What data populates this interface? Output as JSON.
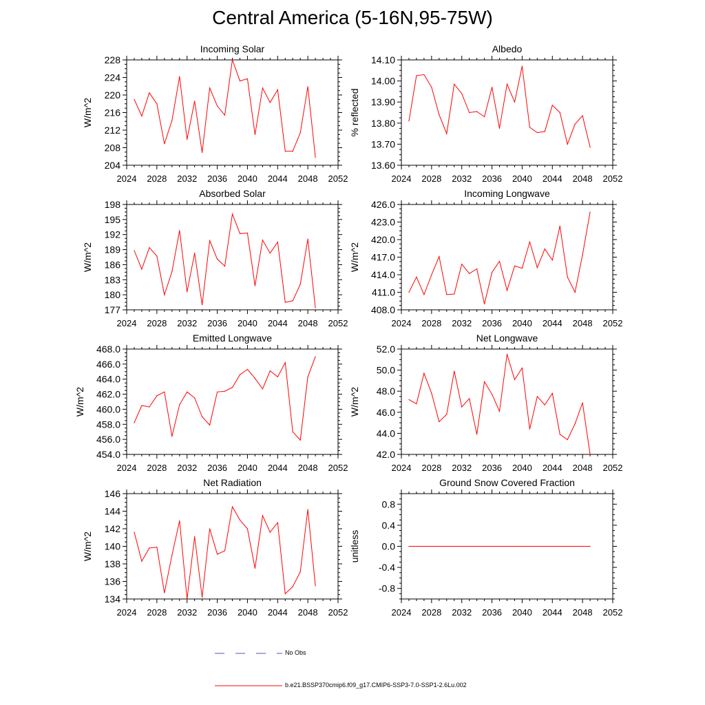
{
  "page": {
    "title": "Central America (5-16N,95-75W)"
  },
  "legend": {
    "items": [
      {
        "label": "No Obs",
        "style": "dashed",
        "color": "#4a52c8"
      },
      {
        "label": "b.e21.BSSP370cmip6.f09_g17.CMIP6-SSP3-7.0-SSP1-2.6Lu.002",
        "style": "solid",
        "color": "#ff0000"
      }
    ]
  },
  "chart_data": [
    {
      "type": "line",
      "title": "Incoming Solar",
      "ylabel": "W/m^2",
      "xlabel": "",
      "xlim": [
        2024,
        2052
      ],
      "ylim": [
        204,
        228
      ],
      "xticks": [
        2024,
        2028,
        2032,
        2036,
        2040,
        2044,
        2048,
        2052
      ],
      "yticks": [
        204,
        208,
        212,
        216,
        220,
        224,
        228
      ],
      "ytick_labels": [
        "204",
        "208",
        "212",
        "216",
        "220",
        "224",
        "228"
      ],
      "color": "#ff0000",
      "x": [
        2025,
        2026,
        2027,
        2028,
        2029,
        2030,
        2031,
        2032,
        2033,
        2034,
        2035,
        2036,
        2037,
        2038,
        2039,
        2040,
        2041,
        2042,
        2043,
        2044,
        2045,
        2046,
        2047,
        2048,
        2049
      ],
      "values": [
        219.0,
        215.2,
        220.5,
        218.0,
        208.9,
        214.2,
        224.2,
        209.9,
        218.6,
        206.9,
        221.6,
        217.5,
        215.4,
        228.0,
        223.2,
        223.7,
        211.0,
        221.6,
        218.3,
        221.2,
        207.2,
        207.2,
        211.4,
        221.9,
        205.8
      ]
    },
    {
      "type": "line",
      "title": "Albedo",
      "ylabel": "% reflected",
      "xlabel": "",
      "xlim": [
        2024,
        2052
      ],
      "ylim": [
        13.6,
        14.1
      ],
      "xticks": [
        2024,
        2028,
        2032,
        2036,
        2040,
        2044,
        2048,
        2052
      ],
      "yticks": [
        13.6,
        13.7,
        13.8,
        13.9,
        14.0,
        14.1
      ],
      "ytick_labels": [
        "13.60",
        "13.70",
        "13.80",
        "13.90",
        "14.00",
        "14.10"
      ],
      "color": "#ff0000",
      "x": [
        2025,
        2026,
        2027,
        2028,
        2029,
        2030,
        2031,
        2032,
        2033,
        2034,
        2035,
        2036,
        2037,
        2038,
        2039,
        2040,
        2041,
        2042,
        2043,
        2044,
        2045,
        2046,
        2047,
        2048,
        2049
      ],
      "values": [
        13.81,
        14.025,
        14.03,
        13.97,
        13.84,
        13.75,
        13.985,
        13.94,
        13.85,
        13.855,
        13.83,
        13.97,
        13.775,
        13.985,
        13.9,
        14.07,
        13.78,
        13.755,
        13.76,
        13.885,
        13.85,
        13.7,
        13.795,
        13.835,
        13.685
      ]
    },
    {
      "type": "line",
      "title": "Absorbed Solar",
      "ylabel": "W/m^2",
      "xlabel": "",
      "xlim": [
        2024,
        2052
      ],
      "ylim": [
        177,
        198
      ],
      "xticks": [
        2024,
        2028,
        2032,
        2036,
        2040,
        2044,
        2048,
        2052
      ],
      "yticks": [
        177,
        180,
        183,
        186,
        189,
        192,
        195,
        198
      ],
      "ytick_labels": [
        "177",
        "180",
        "183",
        "186",
        "189",
        "192",
        "195",
        "198"
      ],
      "color": "#ff0000",
      "x": [
        2025,
        2026,
        2027,
        2028,
        2029,
        2030,
        2031,
        2032,
        2033,
        2034,
        2035,
        2036,
        2037,
        2038,
        2039,
        2040,
        2041,
        2042,
        2043,
        2044,
        2045,
        2046,
        2047,
        2048,
        2049
      ],
      "values": [
        188.8,
        185.1,
        189.4,
        187.7,
        180.0,
        184.6,
        192.8,
        180.6,
        188.3,
        178.0,
        190.8,
        187.1,
        185.7,
        196.1,
        192.2,
        192.3,
        181.8,
        190.9,
        188.3,
        190.5,
        178.5,
        178.8,
        182.1,
        191.1,
        177.4
      ]
    },
    {
      "type": "line",
      "title": "Incoming Longwave",
      "ylabel": "W/m^2",
      "xlabel": "",
      "xlim": [
        2024,
        2052
      ],
      "ylim": [
        408,
        426
      ],
      "xticks": [
        2024,
        2028,
        2032,
        2036,
        2040,
        2044,
        2048,
        2052
      ],
      "yticks": [
        408,
        411,
        414,
        417,
        420,
        423,
        426
      ],
      "ytick_labels": [
        "408.0",
        "411.0",
        "414.0",
        "417.0",
        "420.0",
        "423.0",
        "426.0"
      ],
      "color": "#ff0000",
      "x": [
        2025,
        2026,
        2027,
        2028,
        2029,
        2030,
        2031,
        2032,
        2033,
        2034,
        2035,
        2036,
        2037,
        2038,
        2039,
        2040,
        2041,
        2042,
        2043,
        2044,
        2045,
        2046,
        2047,
        2048,
        2049
      ],
      "values": [
        411.0,
        413.6,
        410.6,
        414.0,
        417.1,
        410.6,
        410.7,
        415.8,
        414.2,
        415.0,
        409.0,
        414.4,
        416.3,
        411.3,
        415.5,
        415.1,
        419.6,
        415.2,
        418.4,
        416.5,
        422.3,
        413.6,
        411.0,
        417.4,
        424.7
      ]
    },
    {
      "type": "line",
      "title": "Emitted Longwave",
      "ylabel": "W/m^2",
      "xlabel": "",
      "xlim": [
        2024,
        2052
      ],
      "ylim": [
        454,
        468
      ],
      "xticks": [
        2024,
        2028,
        2032,
        2036,
        2040,
        2044,
        2048,
        2052
      ],
      "yticks": [
        454,
        456,
        458,
        460,
        462,
        464,
        466,
        468
      ],
      "ytick_labels": [
        "454.0",
        "456.0",
        "458.0",
        "460.0",
        "462.0",
        "464.0",
        "466.0",
        "468.0"
      ],
      "color": "#ff0000",
      "x": [
        2025,
        2026,
        2027,
        2028,
        2029,
        2030,
        2031,
        2032,
        2033,
        2034,
        2035,
        2036,
        2037,
        2038,
        2039,
        2040,
        2041,
        2042,
        2043,
        2044,
        2045,
        2046,
        2047,
        2048,
        2049
      ],
      "values": [
        458.2,
        460.5,
        460.3,
        461.8,
        462.3,
        456.4,
        460.6,
        462.3,
        461.5,
        459.0,
        457.9,
        462.3,
        462.4,
        462.9,
        464.6,
        465.3,
        464.1,
        462.7,
        465.1,
        464.3,
        466.2,
        457.0,
        455.9,
        464.3,
        467.0
      ]
    },
    {
      "type": "line",
      "title": "Net Longwave",
      "ylabel": "W/m^2",
      "xlabel": "",
      "xlim": [
        2024,
        2052
      ],
      "ylim": [
        42,
        52
      ],
      "xticks": [
        2024,
        2028,
        2032,
        2036,
        2040,
        2044,
        2048,
        2052
      ],
      "yticks": [
        42,
        44,
        46,
        48,
        50,
        52
      ],
      "ytick_labels": [
        "42.0",
        "44.0",
        "46.0",
        "48.0",
        "50.0",
        "52.0"
      ],
      "color": "#ff0000",
      "x": [
        2025,
        2026,
        2027,
        2028,
        2029,
        2030,
        2031,
        2032,
        2033,
        2034,
        2035,
        2036,
        2037,
        2038,
        2039,
        2040,
        2041,
        2042,
        2043,
        2044,
        2045,
        2046,
        2047,
        2048,
        2049
      ],
      "values": [
        47.2,
        46.8,
        49.7,
        47.8,
        45.1,
        45.8,
        49.9,
        46.5,
        47.3,
        43.9,
        48.9,
        47.7,
        46.1,
        51.5,
        49.1,
        50.2,
        44.4,
        47.5,
        46.7,
        47.8,
        43.9,
        43.4,
        44.9,
        46.9,
        42.0
      ]
    },
    {
      "type": "line",
      "title": "Net Radiation",
      "ylabel": "W/m^2",
      "xlabel": "",
      "xlim": [
        2024,
        2052
      ],
      "ylim": [
        134,
        146
      ],
      "xticks": [
        2024,
        2028,
        2032,
        2036,
        2040,
        2044,
        2048,
        2052
      ],
      "yticks": [
        134,
        136,
        138,
        140,
        142,
        144,
        146
      ],
      "ytick_labels": [
        "134",
        "136",
        "138",
        "140",
        "142",
        "144",
        "146"
      ],
      "color": "#ff0000",
      "x": [
        2025,
        2026,
        2027,
        2028,
        2029,
        2030,
        2031,
        2032,
        2033,
        2034,
        2035,
        2036,
        2037,
        2038,
        2039,
        2040,
        2041,
        2042,
        2043,
        2044,
        2045,
        2046,
        2047,
        2048,
        2049
      ],
      "values": [
        141.6,
        138.3,
        139.8,
        139.9,
        134.7,
        139.0,
        142.9,
        134.0,
        141.1,
        134.2,
        142.0,
        139.1,
        139.5,
        144.5,
        143.0,
        142.0,
        137.5,
        143.5,
        141.6,
        142.7,
        134.6,
        135.4,
        137.1,
        144.2,
        135.5
      ]
    },
    {
      "type": "line",
      "title": "Ground Snow Covered Fraction",
      "ylabel": "unitless",
      "xlabel": "",
      "xlim": [
        2024,
        2052
      ],
      "ylim": [
        -1.0,
        1.0
      ],
      "xticks": [
        2024,
        2028,
        2032,
        2036,
        2040,
        2044,
        2048,
        2052
      ],
      "yticks": [
        -0.8,
        -0.4,
        0.0,
        0.4,
        0.8
      ],
      "ytick_labels": [
        "-0.8",
        "-0.4",
        "0.0",
        "0.4",
        "0.8"
      ],
      "color": "#ff0000",
      "x": [
        2025,
        2026,
        2027,
        2028,
        2029,
        2030,
        2031,
        2032,
        2033,
        2034,
        2035,
        2036,
        2037,
        2038,
        2039,
        2040,
        2041,
        2042,
        2043,
        2044,
        2045,
        2046,
        2047,
        2048,
        2049
      ],
      "values": [
        0,
        0,
        0,
        0,
        0,
        0,
        0,
        0,
        0,
        0,
        0,
        0,
        0,
        0,
        0,
        0,
        0,
        0,
        0,
        0,
        0,
        0,
        0,
        0,
        0
      ]
    }
  ]
}
